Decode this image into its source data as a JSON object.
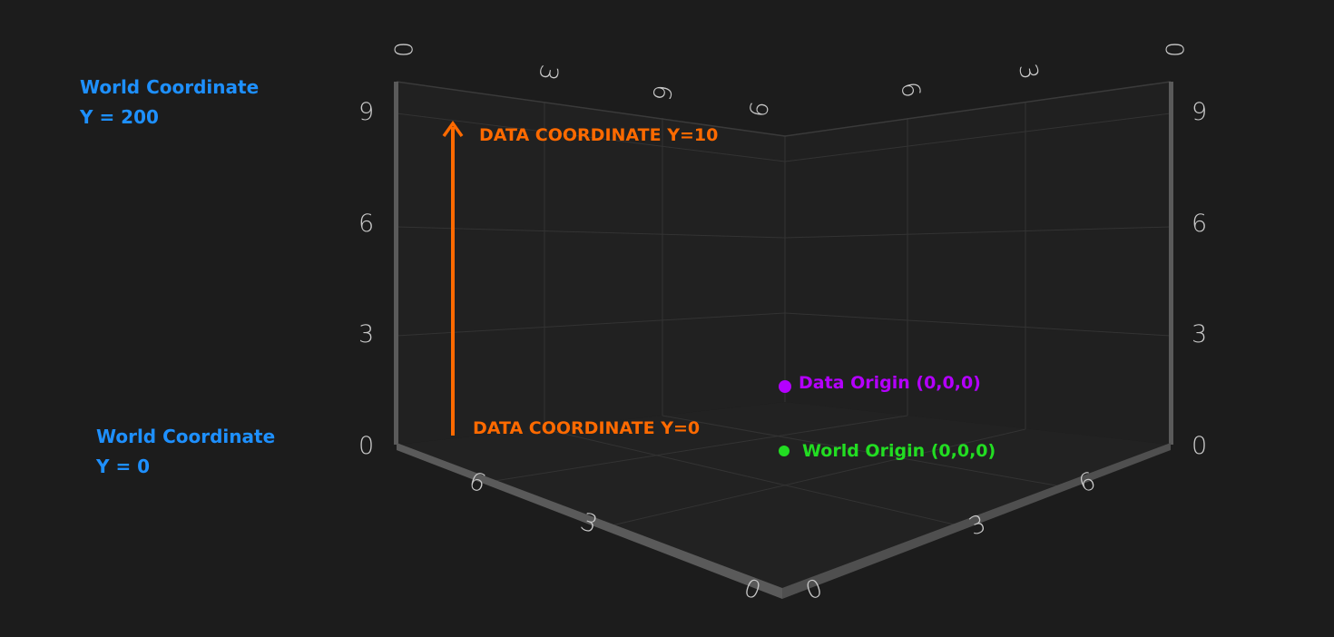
{
  "labels": {
    "world_top_line1": "World Coordinate",
    "world_top_line2": "Y = 200",
    "world_bottom_line1": "World Coordinate",
    "world_bottom_line2": "Y = 0",
    "data_y_top": "DATA COORDINATE Y=10",
    "data_y_bottom": "DATA COORDINATE Y=0",
    "data_origin": "Data Origin (0,0,0)",
    "world_origin": "World Origin (0,0,0)"
  },
  "axes": {
    "y_left_ticks": [
      "0",
      "3",
      "6",
      "9"
    ],
    "y_right_ticks": [
      "0",
      "3",
      "6",
      "9"
    ],
    "floor_left_ticks": [
      "0",
      "3",
      "6"
    ],
    "floor_right_ticks": [
      "0",
      "3",
      "6"
    ],
    "top_left_ticks": [
      "0",
      "3",
      "6",
      "9"
    ],
    "top_right_ticks": [
      "0",
      "3",
      "6"
    ]
  },
  "colors": {
    "background": "#1c1c1c",
    "world_label": "#1e90ff",
    "data_arrow": "#ff6a00",
    "data_origin": "#b400ff",
    "world_origin": "#22dd22",
    "tick_text": "#c9c9c9",
    "grid": "#3a3a3a",
    "axis_bar": "#5a5a5a"
  }
}
